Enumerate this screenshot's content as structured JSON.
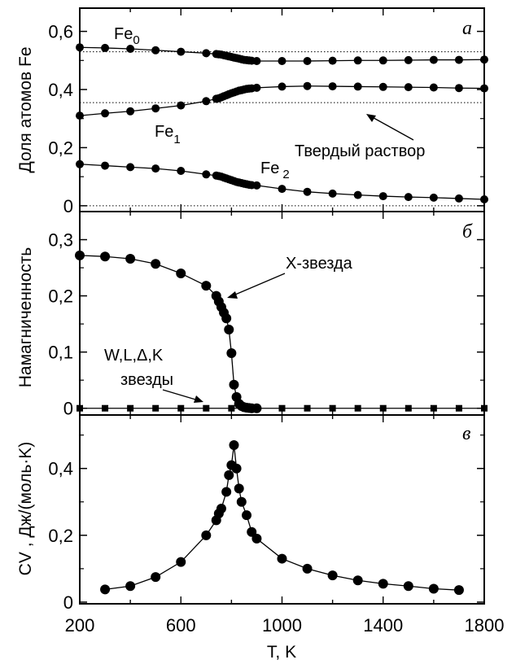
{
  "chart_data": [
    {
      "type": "line",
      "panel_label": "а",
      "ylabel": "Доля атомов  Fe",
      "ylim": [
        -0.02,
        0.68
      ],
      "y_ticks": [
        0,
        0.2,
        0.4,
        0.6
      ],
      "y_tick_labels": [
        "0",
        "0,2",
        "0,4",
        "0,6"
      ],
      "xlim": [
        200,
        1800
      ],
      "reference_lines": [
        0.53,
        0.355,
        0.0
      ],
      "series": [
        {
          "name": "Fe0",
          "x": [
            200,
            300,
            400,
            500,
            600,
            700,
            740,
            750,
            760,
            770,
            780,
            790,
            800,
            810,
            820,
            830,
            840,
            850,
            860,
            870,
            880,
            900,
            1000,
            1100,
            1200,
            1300,
            1400,
            1500,
            1600,
            1700,
            1800
          ],
          "y": [
            0.545,
            0.543,
            0.54,
            0.535,
            0.53,
            0.525,
            0.522,
            0.521,
            0.52,
            0.518,
            0.516,
            0.514,
            0.512,
            0.51,
            0.508,
            0.506,
            0.504,
            0.502,
            0.501,
            0.5,
            0.499,
            0.498,
            0.498,
            0.498,
            0.499,
            0.5,
            0.5,
            0.501,
            0.502,
            0.502,
            0.503
          ]
        },
        {
          "name": "Fe1",
          "x": [
            200,
            300,
            400,
            500,
            600,
            700,
            740,
            750,
            760,
            770,
            780,
            790,
            800,
            810,
            820,
            830,
            840,
            850,
            860,
            870,
            880,
            900,
            1000,
            1100,
            1200,
            1300,
            1400,
            1500,
            1600,
            1700,
            1800
          ],
          "y": [
            0.31,
            0.318,
            0.325,
            0.335,
            0.345,
            0.36,
            0.368,
            0.37,
            0.373,
            0.377,
            0.38,
            0.384,
            0.387,
            0.39,
            0.393,
            0.396,
            0.398,
            0.4,
            0.402,
            0.403,
            0.404,
            0.406,
            0.41,
            0.412,
            0.411,
            0.41,
            0.409,
            0.408,
            0.407,
            0.405,
            0.404
          ]
        },
        {
          "name": "Fe2",
          "x": [
            200,
            300,
            400,
            500,
            600,
            700,
            740,
            750,
            760,
            770,
            780,
            790,
            800,
            810,
            820,
            830,
            840,
            850,
            860,
            870,
            880,
            900,
            1000,
            1100,
            1200,
            1300,
            1400,
            1500,
            1600,
            1700,
            1800
          ],
          "y": [
            0.143,
            0.138,
            0.133,
            0.128,
            0.12,
            0.108,
            0.104,
            0.102,
            0.1,
            0.097,
            0.094,
            0.091,
            0.088,
            0.085,
            0.082,
            0.08,
            0.078,
            0.076,
            0.074,
            0.072,
            0.071,
            0.07,
            0.058,
            0.048,
            0.042,
            0.037,
            0.033,
            0.03,
            0.028,
            0.025,
            0.022
          ]
        }
      ],
      "annotations": [
        "Fe",
        "0",
        "Fe",
        "1",
        "Fe",
        "2",
        "Твердый раствор"
      ]
    },
    {
      "type": "line",
      "panel_label": "б",
      "ylabel": "Намагниченность",
      "ylim": [
        -0.012,
        0.35
      ],
      "y_ticks": [
        0,
        0.1,
        0.2,
        0.3
      ],
      "y_tick_labels": [
        "0",
        "0,1",
        "0,2",
        "0,3"
      ],
      "xlim": [
        200,
        1800
      ],
      "series": [
        {
          "name": "X-звезда",
          "x": [
            200,
            300,
            400,
            500,
            600,
            700,
            740,
            750,
            760,
            770,
            780,
            790,
            800,
            810,
            820,
            830,
            840,
            850,
            860,
            870,
            880,
            900
          ],
          "y": [
            0.272,
            0.27,
            0.266,
            0.257,
            0.24,
            0.218,
            0.2,
            0.19,
            0.18,
            0.17,
            0.16,
            0.14,
            0.098,
            0.042,
            0.02,
            0.008,
            0.004,
            0.002,
            0.001,
            0.0005,
            0,
            0
          ]
        },
        {
          "name": "W,L,Δ,K звезды",
          "x": [
            200,
            300,
            400,
            500,
            600,
            700,
            800,
            900,
            1000,
            1100,
            1200,
            1300,
            1400,
            1500,
            1600,
            1700,
            1800
          ],
          "y": [
            0,
            0,
            0,
            0,
            0,
            0,
            0,
            0,
            0,
            0,
            0,
            0,
            0,
            0,
            0,
            0,
            0
          ]
        }
      ],
      "annotations": [
        "X-звезда",
        "W,L,Δ,K",
        "звезды"
      ]
    },
    {
      "type": "line",
      "panel_label": "в",
      "ylabel": "CV , Дж/(моль·K)",
      "ylim": [
        -0.005,
        0.56
      ],
      "y_ticks": [
        0,
        0.2,
        0.4
      ],
      "y_tick_labels": [
        "0",
        "0,2",
        "0,4"
      ],
      "xlabel": "T, K",
      "xlim": [
        200,
        1800
      ],
      "x_ticks": [
        200,
        600,
        1000,
        1400,
        1800
      ],
      "x_tick_labels": [
        "200",
        "600",
        "1000",
        "1400",
        "1800"
      ],
      "series": [
        {
          "name": "Cv",
          "x": [
            300,
            400,
            500,
            600,
            700,
            740,
            750,
            760,
            780,
            790,
            800,
            810,
            820,
            830,
            840,
            860,
            880,
            900,
            1000,
            1100,
            1200,
            1300,
            1400,
            1500,
            1600,
            1700
          ],
          "y": [
            0.038,
            0.048,
            0.075,
            0.12,
            0.2,
            0.245,
            0.265,
            0.28,
            0.33,
            0.38,
            0.41,
            0.47,
            0.4,
            0.34,
            0.3,
            0.26,
            0.21,
            0.19,
            0.13,
            0.1,
            0.08,
            0.065,
            0.055,
            0.048,
            0.04,
            0.036
          ]
        }
      ]
    }
  ]
}
